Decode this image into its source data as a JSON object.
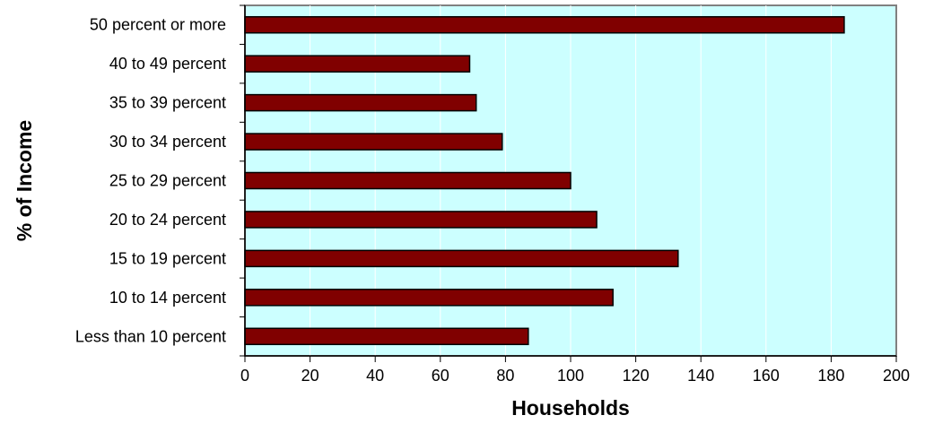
{
  "chart_data": {
    "type": "bar",
    "orientation": "horizontal",
    "title": "",
    "xlabel": "Households",
    "ylabel": "% of Income",
    "categories": [
      "50 percent or more",
      "40 to 49 percent",
      "35 to 39 percent",
      "30 to 34 percent",
      "25 to 29 percent",
      "20 to 24 percent",
      "15 to 19 percent",
      "10 to 14 percent",
      "Less than 10 percent"
    ],
    "values": [
      184,
      69,
      71,
      79,
      100,
      108,
      133,
      113,
      87
    ],
    "xlim": [
      0,
      200
    ],
    "xticks": [
      "0",
      "20",
      "40",
      "60",
      "80",
      "100",
      "120",
      "140",
      "160",
      "180",
      "200"
    ],
    "grid": "vertical",
    "legend": "none",
    "colors": {
      "bar_fill": "#800000",
      "bar_stroke": "#000000",
      "plot_background": "#ccffff",
      "gridline": "#ffffff",
      "plot_border": "#808080"
    }
  }
}
